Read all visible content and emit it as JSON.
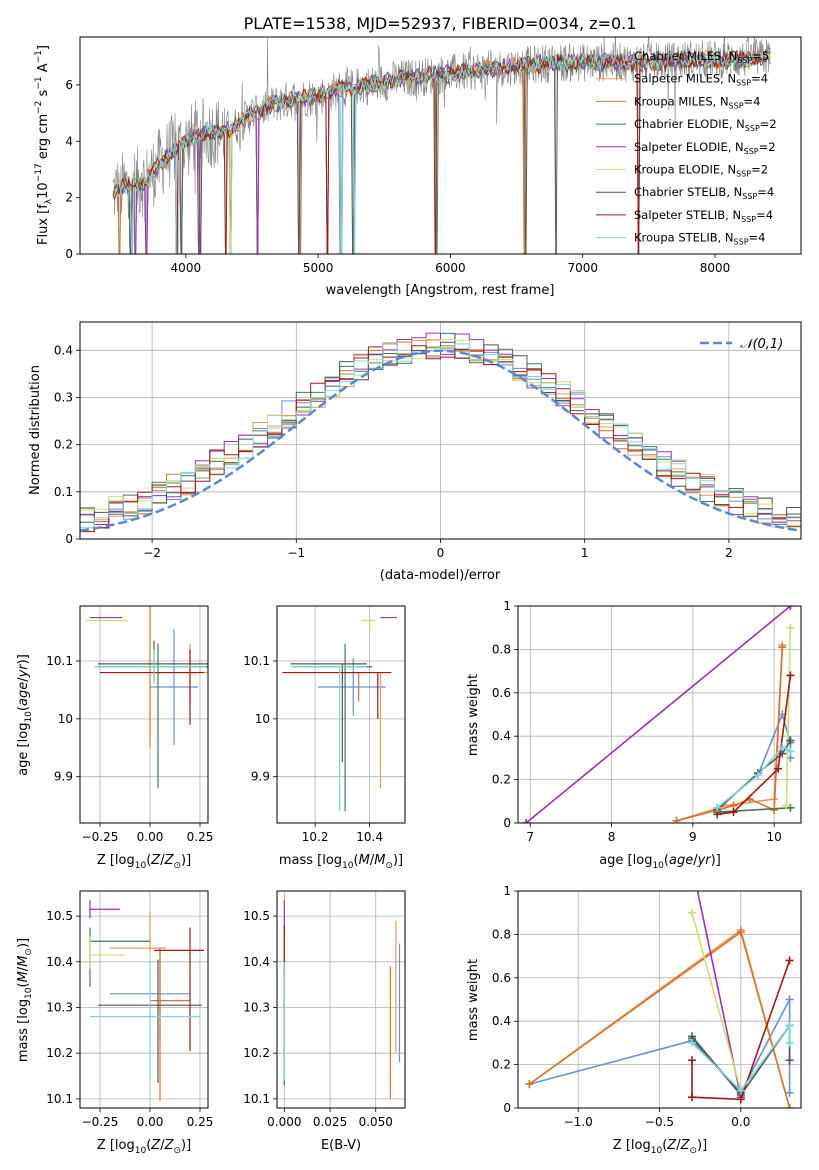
{
  "figure_title": "PLATE=1538, MJD=52937, FIBERID=0034, z=0.1",
  "models": [
    {
      "name": "Chabrier MILES",
      "nssp": "5",
      "color": "#6a8fd8"
    },
    {
      "name": "Salpeter MILES",
      "nssp": "4",
      "color": "#e89a5a"
    },
    {
      "name": "Kroupa MILES",
      "nssp": "4",
      "color": "#d9742a"
    },
    {
      "name": "Chabrier ELODIE",
      "nssp": "2",
      "color": "#3f7a5a"
    },
    {
      "name": "Salpeter ELODIE",
      "nssp": "2",
      "color": "#9b30b8"
    },
    {
      "name": "Kroupa ELODIE",
      "nssp": "2",
      "color": "#c8e070"
    },
    {
      "name": "Chabrier STELIB",
      "nssp": "4",
      "color": "#555555"
    },
    {
      "name": "Salpeter STELIB",
      "nssp": "4",
      "color": "#a01818"
    },
    {
      "name": "Kroupa STELIB",
      "nssp": "4",
      "color": "#7fd6dc"
    }
  ],
  "chart_data": [
    {
      "id": "spectrum",
      "type": "line",
      "xlabel": "wavelength [Angstrom, rest frame]",
      "ylabel": "Flux [f_λ 10^-17 erg cm^-2 s^-1 A^-1]",
      "xlim": [
        3200,
        8650
      ],
      "ylim": [
        0,
        7.7
      ],
      "xticks": [
        4000,
        5000,
        6000,
        7000,
        8000
      ],
      "yticks": [
        0,
        2,
        4,
        6
      ],
      "data_color": "#808080",
      "continuum": {
        "x": [
          3450,
          3500,
          3600,
          3700,
          3800,
          3900,
          4000,
          4100,
          4200,
          4300,
          4400,
          4500,
          4600,
          4800,
          5000,
          5200,
          5400,
          5600,
          5800,
          6000,
          6200,
          6400,
          6600,
          6800,
          7000,
          7200,
          7400,
          7600,
          7800,
          8000,
          8200,
          8400
        ],
        "y": [
          2.2,
          2.3,
          2.5,
          2.6,
          3.2,
          3.7,
          3.9,
          4.3,
          4.3,
          4.4,
          4.6,
          5.0,
          5.2,
          5.5,
          5.6,
          5.9,
          6.0,
          6.2,
          6.3,
          6.4,
          6.5,
          6.6,
          6.7,
          6.8,
          6.8,
          6.8,
          6.8,
          6.8,
          6.9,
          6.9,
          6.9,
          7.0
        ]
      },
      "absorption_lines": [
        3500,
        3590,
        3620,
        3700,
        3934,
        3968,
        4102,
        4300,
        4340,
        4540,
        4861,
        5070,
        5175,
        5270,
        5890,
        6563,
        6800,
        7420
      ],
      "legend_location": "upper right"
    },
    {
      "id": "residuals",
      "type": "histogram",
      "xlabel": "(data-model)/error",
      "ylabel": "Normed distribution",
      "xlim": [
        -2.5,
        2.5
      ],
      "ylim": [
        0,
        0.46
      ],
      "xticks": [
        -2,
        -1,
        0,
        1,
        2
      ],
      "yticks": [
        0.0,
        0.1,
        0.2,
        0.3,
        0.4
      ],
      "grid": true,
      "bin_width": 0.1,
      "bin_start": -2.5,
      "reference_curve": {
        "label": "𝒩(0,1)",
        "mu": 0,
        "sigma": 1,
        "style": "dashed",
        "color": "#5b87d8"
      },
      "legend_location": "upper right"
    },
    {
      "id": "age-vs-Z",
      "type": "scatter",
      "xlabel": "Z [log10(Z/Z⊙)]",
      "ylabel": "age [log10(age/yr)]",
      "xlim": [
        -0.35,
        0.29
      ],
      "ylim": [
        9.82,
        10.195
      ],
      "xticks": [
        -0.25,
        0.0,
        0.25
      ],
      "xticklabels": [
        "−0.25",
        "0.00",
        "0.25"
      ],
      "yticks": [
        9.9,
        10.0,
        10.1
      ],
      "grid": true,
      "errorbars": [
        {
          "model": 0,
          "x": 0.12,
          "xerr": [
            0.12,
            0.12
          ],
          "y": 10.055,
          "yerr": [
            0.1,
            0.1
          ]
        },
        {
          "model": 1,
          "x": 0.2,
          "xerr": [
            0.18,
            0.09
          ],
          "y": 10.08,
          "yerr": [
            0.05,
            0.05
          ]
        },
        {
          "model": 2,
          "x": 0.0,
          "xerr": [
            0.03,
            0.25
          ],
          "y": 10.08,
          "yerr": [
            0.13,
            0.13
          ]
        },
        {
          "model": 3,
          "x": 0.04,
          "xerr": [
            0.3,
            0.25
          ],
          "y": 10.09,
          "yerr": [
            0.21,
            0.04
          ]
        },
        {
          "model": 4,
          "x": -0.22,
          "xerr": [
            0.08,
            0.08
          ],
          "y": 10.175,
          "yerr": [
            0.0,
            0.0
          ]
        },
        {
          "model": 5,
          "x": -0.2,
          "xerr": [
            0.12,
            0.09
          ],
          "y": 10.17,
          "yerr": [
            0.0,
            0.0
          ]
        },
        {
          "model": 6,
          "x": 0.02,
          "xerr": [
            0.28,
            0.3
          ],
          "y": 10.095,
          "yerr": [
            0.03,
            0.04
          ]
        },
        {
          "model": 7,
          "x": 0.2,
          "xerr": [
            0.45,
            0.07
          ],
          "y": 10.08,
          "yerr": [
            0.09,
            0.04
          ]
        },
        {
          "model": 8,
          "x": 0.02,
          "xerr": [
            0.3,
            0.26
          ],
          "y": 10.09,
          "yerr": [
            0.03,
            0.03
          ]
        }
      ]
    },
    {
      "id": "age-vs-mass",
      "type": "scatter",
      "xlabel": "mass [log10(M/M⊙)]",
      "xlim": [
        10.06,
        10.53
      ],
      "ylim": [
        9.82,
        10.195
      ],
      "xticks": [
        10.2,
        10.4
      ],
      "yticks": [
        9.9,
        10.0,
        10.1
      ],
      "grid": true,
      "errorbars": [
        {
          "model": 0,
          "x": 10.34,
          "xerr": [
            0.13,
            0.12
          ],
          "y": 10.055,
          "yerr": [
            0.05,
            0.05
          ]
        },
        {
          "model": 1,
          "x": 10.44,
          "xerr": [
            0.2,
            0.02
          ],
          "y": 10.08,
          "yerr": [
            0.2,
            0.0
          ]
        },
        {
          "model": 2,
          "x": 10.36,
          "xerr": [
            0.06,
            0.04
          ],
          "y": 10.08,
          "yerr": [
            0.05,
            0.0
          ]
        },
        {
          "model": 3,
          "x": 10.31,
          "xerr": [
            0.19,
            0.1
          ],
          "y": 10.09,
          "yerr": [
            0.25,
            0.04
          ]
        },
        {
          "model": 4,
          "x": 10.5,
          "xerr": [
            0.06,
            0.0
          ],
          "y": 10.175,
          "yerr": [
            0.0,
            0.0
          ]
        },
        {
          "model": 5,
          "x": 10.4,
          "xerr": [
            0.03,
            0.02
          ],
          "y": 10.17,
          "yerr": [
            0.02,
            0.0
          ]
        },
        {
          "model": 6,
          "x": 10.3,
          "xerr": [
            0.19,
            0.09
          ],
          "y": 10.095,
          "yerr": [
            0.17,
            0.0
          ]
        },
        {
          "model": 7,
          "x": 10.43,
          "xerr": [
            0.35,
            0.05
          ],
          "y": 10.08,
          "yerr": [
            0.08,
            0.0
          ]
        },
        {
          "model": 8,
          "x": 10.29,
          "xerr": [
            0.18,
            0.1
          ],
          "y": 10.09,
          "yerr": [
            0.25,
            0.0
          ]
        }
      ]
    },
    {
      "id": "weight-vs-age",
      "type": "line",
      "xlabel": "age [log10(age/yr)]",
      "ylabel": "mass weight",
      "xlim": [
        6.85,
        10.33
      ],
      "ylim": [
        0,
        1.0
      ],
      "xticks": [
        7,
        8,
        9,
        10
      ],
      "yticks": [
        0.0,
        0.2,
        0.4,
        0.6,
        0.8,
        1.0
      ],
      "grid": true,
      "series": [
        {
          "model": 0,
          "x": [
            9.3,
            9.8,
            10.1,
            10.2,
            10.2
          ],
          "y": [
            0.07,
            0.22,
            0.5,
            0.37,
            0.3
          ]
        },
        {
          "model": 1,
          "x": [
            8.8,
            9.4,
            10.0,
            10.1
          ],
          "y": [
            0.01,
            0.08,
            0.11,
            0.82
          ]
        },
        {
          "model": 2,
          "x": [
            8.8,
            9.5,
            9.7,
            10.0,
            10.1
          ],
          "y": [
            0.01,
            0.08,
            0.11,
            0.06,
            0.81
          ]
        },
        {
          "model": 3,
          "x": [
            9.3,
            10.2
          ],
          "y": [
            0.05,
            0.07
          ]
        },
        {
          "model": 4,
          "x": [
            6.95,
            10.2
          ],
          "y": [
            0.0,
            1.0
          ]
        },
        {
          "model": 5,
          "x": [
            10.15,
            10.2
          ],
          "y": [
            0.08,
            0.9
          ]
        },
        {
          "model": 6,
          "x": [
            9.3,
            9.8,
            10.1,
            10.2
          ],
          "y": [
            0.06,
            0.23,
            0.32,
            0.38
          ]
        },
        {
          "model": 7,
          "x": [
            9.3,
            9.5,
            10.05,
            10.2
          ],
          "y": [
            0.04,
            0.05,
            0.25,
            0.68
          ]
        },
        {
          "model": 8,
          "x": [
            9.3,
            9.8,
            10.1,
            10.2
          ],
          "y": [
            0.07,
            0.22,
            0.35,
            0.33
          ]
        }
      ]
    },
    {
      "id": "mass-vs-Z",
      "type": "scatter",
      "xlabel": "Z [log10(Z/Z⊙)]",
      "ylabel": "mass [log10(M/M⊙)]",
      "xlim": [
        -0.35,
        0.29
      ],
      "ylim": [
        10.08,
        10.555
      ],
      "xticks": [
        -0.25,
        0.0,
        0.25
      ],
      "xticklabels": [
        "−0.25",
        "0.00",
        "0.25"
      ],
      "yticks": [
        10.1,
        10.2,
        10.3,
        10.4,
        10.5
      ],
      "grid": true,
      "errorbars": [
        {
          "model": 0,
          "x": 0.05,
          "xerr": [
            0.25,
            0.15
          ],
          "y": 10.33,
          "yerr": [
            0.1,
            0.1
          ]
        },
        {
          "model": 1,
          "x": 0.0,
          "xerr": [
            0.2,
            0.08
          ],
          "y": 10.43,
          "yerr": [
            0.01,
            0.08
          ]
        },
        {
          "model": 2,
          "x": 0.05,
          "xerr": [
            0.05,
            0.15
          ],
          "y": 10.315,
          "yerr": [
            0.22,
            0.11
          ]
        },
        {
          "model": 3,
          "x": -0.3,
          "xerr": [
            0.0,
            0.3
          ],
          "y": 10.445,
          "yerr": [
            0.1,
            0.03
          ]
        },
        {
          "model": 4,
          "x": -0.3,
          "xerr": [
            0.0,
            0.15
          ],
          "y": 10.515,
          "yerr": [
            0.02,
            0.02
          ]
        },
        {
          "model": 5,
          "x": -0.3,
          "xerr": [
            0.0,
            0.17
          ],
          "y": 10.415,
          "yerr": [
            0.03,
            0.04
          ]
        },
        {
          "model": 6,
          "x": 0.04,
          "xerr": [
            0.3,
            0.22
          ],
          "y": 10.305,
          "yerr": [
            0.17,
            0.1
          ]
        },
        {
          "model": 7,
          "x": 0.2,
          "xerr": [
            0.18,
            0.07
          ],
          "y": 10.425,
          "yerr": [
            0.22,
            0.05
          ]
        },
        {
          "model": 8,
          "x": 0.0,
          "xerr": [
            0.3,
            0.25
          ],
          "y": 10.28,
          "yerr": [
            0.14,
            0.12
          ]
        }
      ]
    },
    {
      "id": "mass-vs-ebv",
      "type": "scatter",
      "xlabel": "E(B-V)",
      "xlim": [
        -0.004,
        0.066
      ],
      "ylim": [
        10.08,
        10.555
      ],
      "xticks": [
        0.0,
        0.025,
        0.05
      ],
      "xticklabels": [
        "0.000",
        "0.025",
        "0.050"
      ],
      "yticks": [
        10.1,
        10.2,
        10.3,
        10.4,
        10.5
      ],
      "grid": true,
      "errorbars": [
        {
          "model": 0,
          "x": 0.063,
          "yrange": [
            10.18,
            10.44
          ]
        },
        {
          "model": 1,
          "x": 0.061,
          "yrange": [
            10.2,
            10.49
          ]
        },
        {
          "model": 2,
          "x": 0.058,
          "yrange": [
            10.1,
            10.39
          ]
        },
        {
          "model": 3,
          "x": 0.0,
          "yrange": [
            10.14,
            10.45
          ]
        },
        {
          "model": 4,
          "x": 0.0,
          "yrange": [
            10.38,
            10.535
          ]
        },
        {
          "model": 5,
          "x": 0.0,
          "yrange": [
            10.38,
            10.46
          ]
        },
        {
          "model": 6,
          "x": 0.0,
          "yrange": [
            10.13,
            10.4
          ]
        },
        {
          "model": 7,
          "x": 0.0,
          "yrange": [
            10.37,
            10.48
          ]
        },
        {
          "model": 8,
          "x": 0.0,
          "yrange": [
            10.14,
            10.4
          ]
        }
      ]
    },
    {
      "id": "weight-vs-Z",
      "type": "line",
      "xlabel": "Z [log10(Z/Z⊙)]",
      "ylabel": "mass weight",
      "xlim": [
        -1.37,
        0.37
      ],
      "ylim": [
        0,
        1.0
      ],
      "xticks": [
        -1.0,
        -0.5,
        0.0
      ],
      "xticklabels": [
        "−1.0",
        "−0.5",
        "0.0"
      ],
      "yticks": [
        0.0,
        0.2,
        0.4,
        0.6,
        0.8,
        1.0
      ],
      "grid": true,
      "series": [
        {
          "model": 0,
          "x": [
            -1.3,
            -0.3,
            0.0,
            0.3,
            0.3
          ],
          "y": [
            0.11,
            0.31,
            0.07,
            0.5,
            0.07
          ]
        },
        {
          "model": 1,
          "x": [
            -1.3,
            0.0,
            0.3
          ],
          "y": [
            0.11,
            0.82,
            0.0
          ]
        },
        {
          "model": 2,
          "x": [
            -1.3,
            0.0,
            0.3
          ],
          "y": [
            0.11,
            0.81,
            0.0
          ]
        },
        {
          "model": 3,
          "x": [
            -0.3,
            0.0
          ],
          "y": [
            0.32,
            0.07
          ]
        },
        {
          "model": 4,
          "x": [
            -0.35,
            0.0
          ],
          "y": [
            1.3,
            0.05
          ]
        },
        {
          "model": 5,
          "x": [
            -0.3,
            0.0
          ],
          "y": [
            0.9,
            0.08
          ]
        },
        {
          "model": 6,
          "x": [
            -0.3,
            0.0,
            0.3,
            0.3
          ],
          "y": [
            0.33,
            0.06,
            0.38,
            0.22
          ]
        },
        {
          "model": 7,
          "x": [
            -0.3,
            -0.3,
            0.0,
            0.3
          ],
          "y": [
            0.22,
            0.05,
            0.04,
            0.68
          ]
        },
        {
          "model": 8,
          "x": [
            -0.3,
            0.0,
            0.3,
            0.3
          ],
          "y": [
            0.3,
            0.08,
            0.38,
            0.3
          ]
        }
      ]
    }
  ]
}
